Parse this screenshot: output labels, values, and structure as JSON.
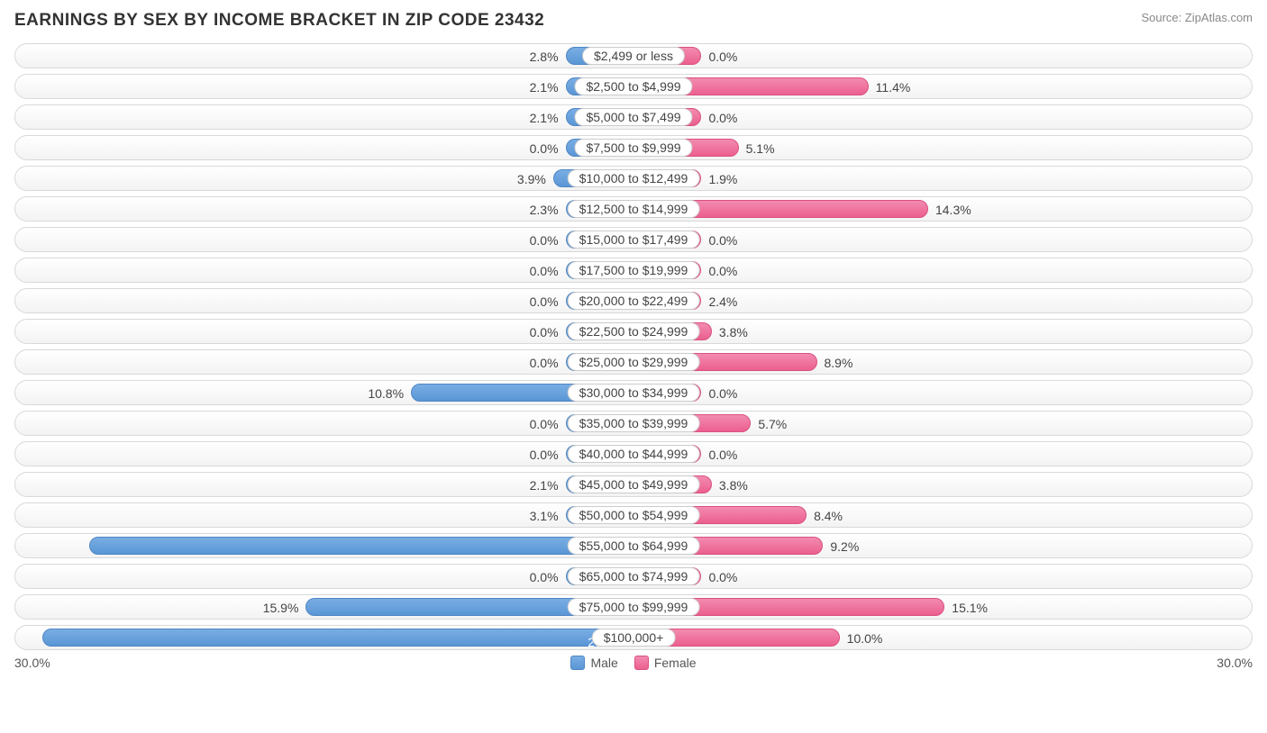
{
  "header": {
    "title": "EARNINGS BY SEX BY INCOME BRACKET IN ZIP CODE 23432",
    "source": "Source: ZipAtlas.com"
  },
  "chart": {
    "type": "diverging-bar",
    "axis_max": 30.0,
    "axis_left_label": "30.0%",
    "axis_right_label": "30.0%",
    "min_bar_pct": 3.3,
    "inside_threshold_pct": 20.0,
    "colors": {
      "male_fill_top": "#79aee3",
      "male_fill_bottom": "#5a96d6",
      "male_border": "#4f86c4",
      "female_fill_top": "#f38bb0",
      "female_fill_bottom": "#eb5f8f",
      "female_border": "#d95080",
      "track_border": "#d9d9d9",
      "track_bg_top": "#ffffff",
      "track_bg_bottom": "#f3f3f3",
      "text": "#444444",
      "title_text": "#333333",
      "source_text": "#888888"
    },
    "legend": {
      "male": "Male",
      "female": "Female"
    },
    "rows": [
      {
        "category": "$2,499 or less",
        "male": 2.8,
        "female": 0.0
      },
      {
        "category": "$2,500 to $4,999",
        "male": 2.1,
        "female": 11.4
      },
      {
        "category": "$5,000 to $7,499",
        "male": 2.1,
        "female": 0.0
      },
      {
        "category": "$7,500 to $9,999",
        "male": 0.0,
        "female": 5.1
      },
      {
        "category": "$10,000 to $12,499",
        "male": 3.9,
        "female": 1.9
      },
      {
        "category": "$12,500 to $14,999",
        "male": 2.3,
        "female": 14.3
      },
      {
        "category": "$15,000 to $17,499",
        "male": 0.0,
        "female": 0.0
      },
      {
        "category": "$17,500 to $19,999",
        "male": 0.0,
        "female": 0.0
      },
      {
        "category": "$20,000 to $22,499",
        "male": 0.0,
        "female": 2.4
      },
      {
        "category": "$22,500 to $24,999",
        "male": 0.0,
        "female": 3.8
      },
      {
        "category": "$25,000 to $29,999",
        "male": 0.0,
        "female": 8.9
      },
      {
        "category": "$30,000 to $34,999",
        "male": 10.8,
        "female": 0.0
      },
      {
        "category": "$35,000 to $39,999",
        "male": 0.0,
        "female": 5.7
      },
      {
        "category": "$40,000 to $44,999",
        "male": 0.0,
        "female": 0.0
      },
      {
        "category": "$45,000 to $49,999",
        "male": 2.1,
        "female": 3.8
      },
      {
        "category": "$50,000 to $54,999",
        "male": 3.1,
        "female": 8.4
      },
      {
        "category": "$55,000 to $64,999",
        "male": 26.4,
        "female": 9.2
      },
      {
        "category": "$65,000 to $74,999",
        "male": 0.0,
        "female": 0.0
      },
      {
        "category": "$75,000 to $99,999",
        "male": 15.9,
        "female": 15.1
      },
      {
        "category": "$100,000+",
        "male": 28.7,
        "female": 10.0
      }
    ]
  }
}
